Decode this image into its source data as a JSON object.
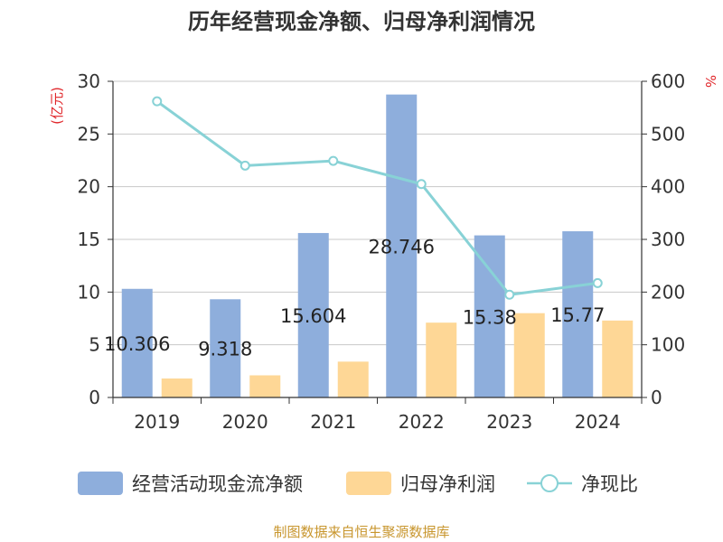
{
  "chart_data": {
    "type": "bar",
    "title": "历年经营现金净额、归母净利润情况",
    "categories": [
      "2019",
      "2020",
      "2021",
      "2022",
      "2023",
      "2024"
    ],
    "series": [
      {
        "name": "经营活动现金流净额",
        "type": "bar",
        "axis": "left",
        "color": "#8eaedc",
        "values": [
          10.306,
          9.318,
          15.604,
          28.746,
          15.38,
          15.77
        ],
        "labels": [
          "10.306",
          "9.318",
          "15.604",
          "28.746",
          "15.38",
          "15.77"
        ]
      },
      {
        "name": "归母净利润",
        "type": "bar",
        "axis": "left",
        "color": "#fed796",
        "values": [
          1.8,
          2.1,
          3.4,
          7.1,
          8.0,
          7.3
        ]
      },
      {
        "name": "净现比",
        "type": "line",
        "axis": "right",
        "color": "#88d2d6",
        "values": [
          562,
          440,
          449,
          405,
          195,
          217
        ]
      }
    ],
    "left_axis": {
      "label": "(亿元)",
      "min": 0,
      "max": 30,
      "ticks": [
        0,
        5,
        10,
        15,
        20,
        25,
        30
      ]
    },
    "right_axis": {
      "label": "%",
      "min": 0,
      "max": 600,
      "ticks": [
        0,
        100,
        200,
        300,
        400,
        500,
        600
      ]
    },
    "grid": true,
    "legend_position": "bottom",
    "unit_color": "#e0262a"
  },
  "source": {
    "text": "制图数据来自恒生聚源数据库",
    "color": "#c8962e"
  }
}
